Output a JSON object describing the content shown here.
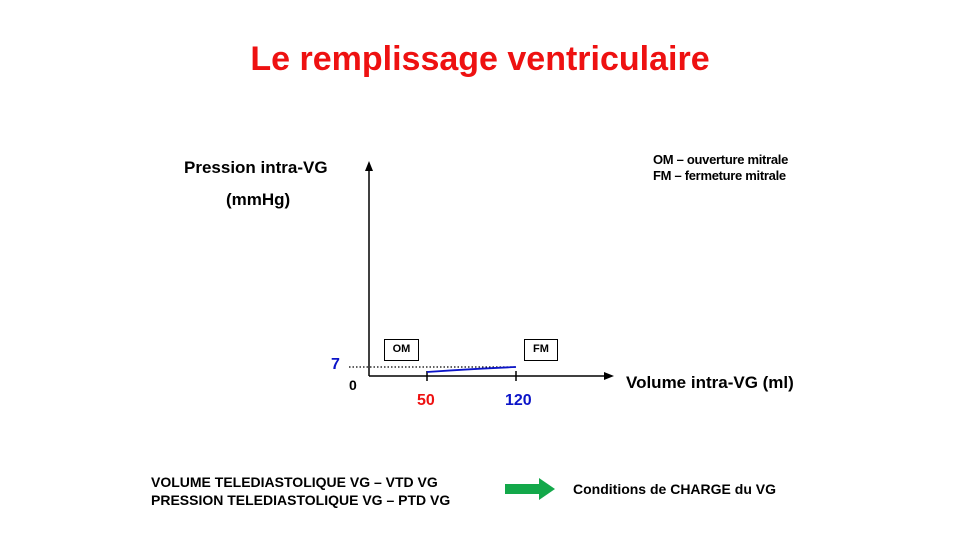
{
  "title": "Le remplissage ventriculaire",
  "y_axis": {
    "label": "Pression intra-VG",
    "unit": "(mmHg)"
  },
  "x_axis": {
    "label": "Volume intra-VG (ml)"
  },
  "legend": {
    "om": "OM – ouverture mitrale",
    "fm": "FM – fermeture mitrale"
  },
  "ticks": {
    "y_value": "7",
    "origin": "0",
    "x_start": "50",
    "x_end": "120"
  },
  "markers": {
    "om": "OM",
    "fm": "FM"
  },
  "colors": {
    "title": "#ee1111",
    "blue": "#0b14c8",
    "red": "#ee1111",
    "arrow": "#13a84a"
  },
  "bottom": {
    "line1": "VOLUME TELEDIASTOLIQUE VG – VTD VG",
    "line2": "PRESSION TELEDIASTOLIQUE VG – PTD VG",
    "result": "Conditions de CHARGE du VG"
  }
}
